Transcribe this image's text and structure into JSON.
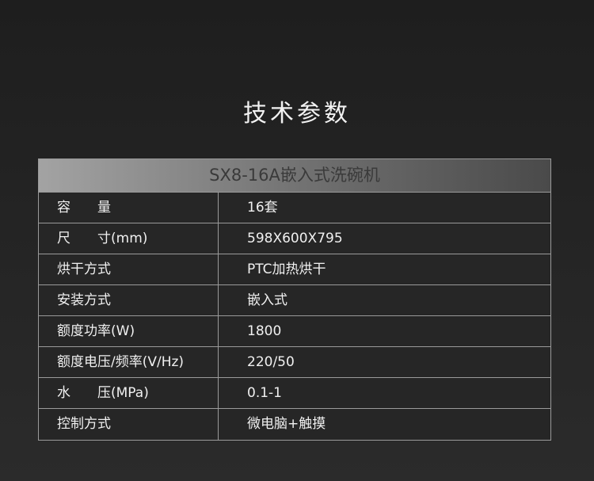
{
  "title": "技术参数",
  "table": {
    "header": "SX8-16A嵌入式洗碗机",
    "rows": [
      {
        "label": "容　　量",
        "value": "16套"
      },
      {
        "label": "尺　　寸(mm)",
        "value": "598X600X795"
      },
      {
        "label": "烘干方式",
        "value": "PTC加热烘干"
      },
      {
        "label": "安装方式",
        "value": "嵌入式"
      },
      {
        "label": "额度功率(W)",
        "value": "1800"
      },
      {
        "label": "额度电压/频率(V/Hz)",
        "value": "220/50"
      },
      {
        "label": "水　　压(MPa)",
        "value": "0.1-1"
      },
      {
        "label": "控制方式",
        "value": "微电脑+触摸"
      }
    ]
  }
}
